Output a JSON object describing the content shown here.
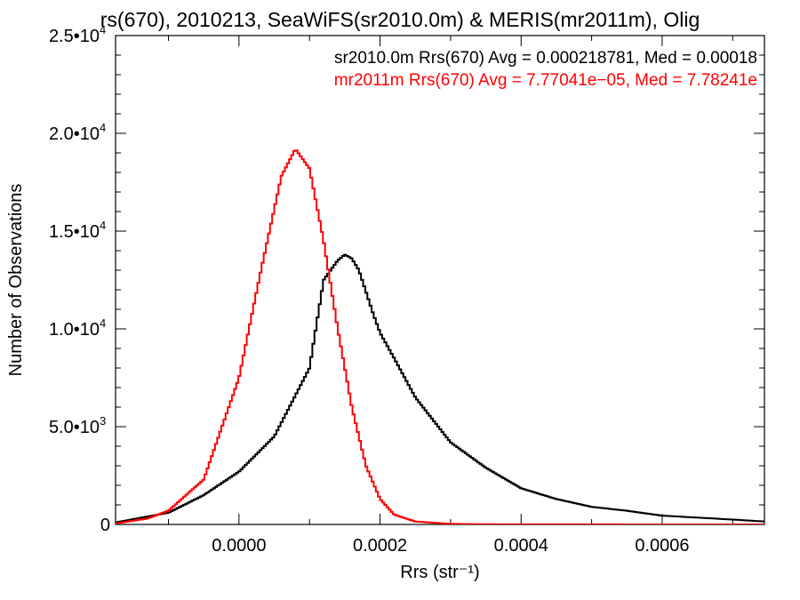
{
  "chart_data": {
    "type": "histogram",
    "title": "rs(670), 2010213, SeaWiFS(sr2010.0m) & MERIS(mr2011m), Olig",
    "xlabel": "Rrs (str⁻¹)",
    "ylabel": "Number of Observations",
    "xlim": [
      -0.000175,
      0.000745
    ],
    "ylim": [
      0,
      25000
    ],
    "x_ticks": [
      {
        "value": 0.0,
        "label": "0.0000"
      },
      {
        "value": 0.0002,
        "label": "0.0002"
      },
      {
        "value": 0.0004,
        "label": "0.0004"
      },
      {
        "value": 0.0006,
        "label": "0.0006"
      }
    ],
    "y_ticks": [
      {
        "value": 0,
        "label": "0",
        "exp": ""
      },
      {
        "value": 5000,
        "label": "5.0•10",
        "exp": "3"
      },
      {
        "value": 10000,
        "label": "1.0•10",
        "exp": "4"
      },
      {
        "value": 15000,
        "label": "1.5•10",
        "exp": "4"
      },
      {
        "value": 20000,
        "label": "2.0•10",
        "exp": "4"
      },
      {
        "value": 25000,
        "label": "2.5•10",
        "exp": "4"
      }
    ],
    "legend": [
      {
        "text": "sr2010.0m Rrs(670) Avg = 0.000218781, Med = 0.00018",
        "color": "#000000"
      },
      {
        "text": "mr2011m Rrs(670) Avg = 7.77041e−05, Med = 7.78241e",
        "color": "#ff0000"
      }
    ],
    "legend_placement": "top-right",
    "grid": false,
    "series": [
      {
        "color": "#000000",
        "x": [
          -0.000175,
          -0.0001,
          -5e-05,
          0.0,
          5e-05,
          0.0001,
          0.00012,
          0.00014,
          0.00015,
          0.00016,
          0.00017,
          0.00019,
          0.0002,
          0.00022,
          0.00025,
          0.0003,
          0.00035,
          0.0004,
          0.00045,
          0.0005,
          0.00055,
          0.0006,
          0.0007,
          0.000745
        ],
        "values": [
          100,
          600,
          1500,
          2700,
          4500,
          8000,
          12500,
          13500,
          13800,
          13600,
          13000,
          10800,
          9800,
          8500,
          6500,
          4200,
          2900,
          1850,
          1300,
          900,
          700,
          450,
          250,
          150
        ]
      },
      {
        "color": "#ff0000",
        "x": [
          -0.000175,
          -0.00013,
          -0.0001,
          -5e-05,
          0.0,
          3e-05,
          6e-05,
          8e-05,
          0.0001,
          0.00012,
          0.00014,
          0.00016,
          0.00018,
          0.0002,
          0.00022,
          0.00025,
          0.0003,
          0.00035,
          0.0004,
          0.000745
        ],
        "values": [
          50,
          300,
          700,
          2300,
          7500,
          12800,
          17800,
          19200,
          18200,
          14500,
          10000,
          6000,
          3000,
          1300,
          500,
          150,
          30,
          10,
          5,
          0
        ]
      }
    ]
  }
}
